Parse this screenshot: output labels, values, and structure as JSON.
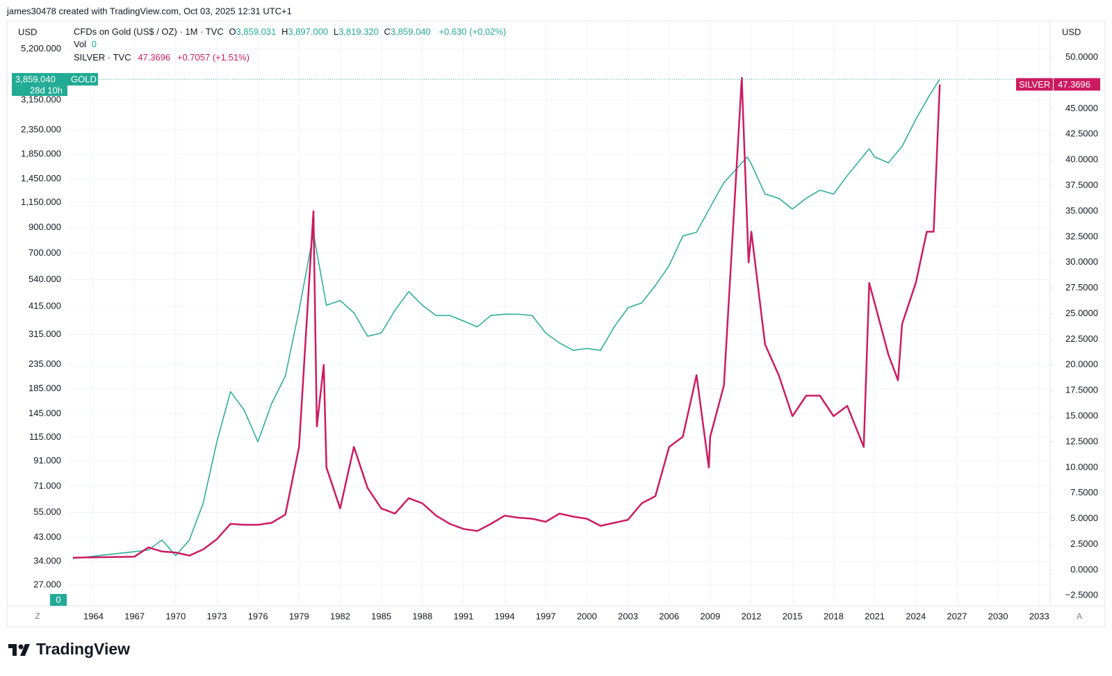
{
  "header": {
    "credit": "james30478 created with TradingView.com, Oct 03, 2025 12:31 UTC+1"
  },
  "legend": {
    "gold_symbol": "CFDs on Gold (US$ / OZ) · 1M · TVC",
    "open_key": "O",
    "open": "3,859.031",
    "high_key": "H",
    "high": "3,897.000",
    "low_key": "L",
    "low": "3,819.320",
    "close_key": "C",
    "close": "3,859.040",
    "change": "+0.630 (+0.02%)",
    "vol_key": "Vol",
    "vol": "0",
    "silver_symbol": "SILVER · TVC",
    "silver_price": "47.3696",
    "silver_change": "+0.7057 (+1.51%)"
  },
  "chart_data": {
    "type": "line",
    "y_unit": "USD",
    "y2_unit": "USD",
    "ylog": true,
    "grid": true,
    "xlim": [
      1962.1,
      2033.8
    ],
    "xticks": [
      1964,
      1967,
      1970,
      1973,
      1976,
      1979,
      1982,
      1985,
      1988,
      1991,
      1994,
      1997,
      2000,
      2003,
      2006,
      2009,
      2012,
      2015,
      2018,
      2021,
      2024,
      2027,
      2030,
      2033
    ],
    "ylim": [
      22,
      6800
    ],
    "yticks": [
      {
        "value": 27,
        "label": "27.000"
      },
      {
        "value": 34,
        "label": "34.000"
      },
      {
        "value": 43,
        "label": "43.000"
      },
      {
        "value": 55,
        "label": "55.000"
      },
      {
        "value": 71,
        "label": "71.000"
      },
      {
        "value": 91,
        "label": "91.000"
      },
      {
        "value": 115,
        "label": "115.000"
      },
      {
        "value": 145,
        "label": "145.000"
      },
      {
        "value": 185,
        "label": "185.000"
      },
      {
        "value": 235,
        "label": "235.000"
      },
      {
        "value": 315,
        "label": "315.000"
      },
      {
        "value": 415,
        "label": "415.000"
      },
      {
        "value": 540,
        "label": "540.000"
      },
      {
        "value": 700,
        "label": "700.000"
      },
      {
        "value": 900,
        "label": "900.000"
      },
      {
        "value": 1150,
        "label": "1,150.000"
      },
      {
        "value": 1450,
        "label": "1,450.000"
      },
      {
        "value": 1850,
        "label": "1,850.000"
      },
      {
        "value": 2350,
        "label": "2,350.000"
      },
      {
        "value": 3150,
        "label": "3,150.000"
      },
      {
        "value": 5200,
        "label": "5,200.000"
      }
    ],
    "y2lim": [
      -3.5,
      53.5
    ],
    "y2ticks": [
      {
        "value": -2.5,
        "label": "−2.5000"
      },
      {
        "value": 0,
        "label": "0.0000"
      },
      {
        "value": 2.5,
        "label": "2.5000"
      },
      {
        "value": 5,
        "label": "5.0000"
      },
      {
        "value": 7.5,
        "label": "7.5000"
      },
      {
        "value": 10,
        "label": "10.0000"
      },
      {
        "value": 12.5,
        "label": "12.5000"
      },
      {
        "value": 15,
        "label": "15.0000"
      },
      {
        "value": 17.5,
        "label": "17.5000"
      },
      {
        "value": 20,
        "label": "20.0000"
      },
      {
        "value": 22.5,
        "label": "22.5000"
      },
      {
        "value": 25,
        "label": "25.0000"
      },
      {
        "value": 27.5,
        "label": "27.5000"
      },
      {
        "value": 30,
        "label": "30.0000"
      },
      {
        "value": 32.5,
        "label": "32.5000"
      },
      {
        "value": 35,
        "label": "35.0000"
      },
      {
        "value": 37.5,
        "label": "37.5000"
      },
      {
        "value": 40,
        "label": "40.0000"
      },
      {
        "value": 42.5,
        "label": "42.5000"
      },
      {
        "value": 45,
        "label": "45.0000"
      },
      {
        "value": 50,
        "label": "50.0000"
      }
    ],
    "series": [
      {
        "name": "GOLD",
        "color": "#22ab94",
        "axis": "y",
        "x": [
          1962.5,
          1968,
          1969,
          1970,
          1971,
          1972,
          1973,
          1974,
          1975,
          1976,
          1977,
          1978,
          1979,
          1980.05,
          1981,
          1982,
          1983,
          1984,
          1985,
          1986,
          1987,
          1988,
          1989,
          1990,
          1991,
          1992,
          1993,
          1994,
          1995,
          1996,
          1997,
          1998,
          1999,
          2000,
          2001,
          2002,
          2003,
          2004,
          2005,
          2006,
          2007,
          2008,
          2009,
          2010,
          2011.7,
          2012,
          2013,
          2014,
          2015,
          2016,
          2017,
          2018,
          2019,
          2020.6,
          2021,
          2022,
          2023,
          2024,
          2025,
          2025.75
        ],
        "values": [
          35,
          38,
          42,
          36,
          42,
          60,
          110,
          180,
          150,
          110,
          160,
          210,
          400,
          850,
          420,
          440,
          390,
          310,
          320,
          400,
          480,
          420,
          380,
          380,
          360,
          340,
          380,
          385,
          385,
          380,
          320,
          290,
          270,
          275,
          270,
          340,
          410,
          430,
          510,
          620,
          830,
          860,
          1100,
          1400,
          1800,
          1680,
          1250,
          1200,
          1080,
          1200,
          1300,
          1250,
          1500,
          1950,
          1800,
          1700,
          2000,
          2600,
          3300,
          3859.04
        ]
      },
      {
        "name": "SILVER",
        "color": "#cc1a60",
        "axis": "y2",
        "x": [
          1962.5,
          1967,
          1968,
          1969,
          1970,
          1971,
          1972,
          1973,
          1974,
          1975,
          1976,
          1977,
          1978,
          1979,
          1980.05,
          1980.3,
          1980.8,
          1981,
          1982,
          1983,
          1984,
          1985,
          1986,
          1987,
          1988,
          1989,
          1990,
          1991,
          1992,
          1993,
          1994,
          1995,
          1996,
          1997,
          1998,
          1999,
          2000,
          2001,
          2002,
          2003,
          2004,
          2005,
          2006,
          2007,
          2008,
          2008.9,
          2009,
          2010,
          2011.3,
          2011.8,
          2012,
          2013,
          2014,
          2015,
          2016,
          2017,
          2018,
          2019,
          2020.2,
          2020.6,
          2021,
          2022,
          2022.7,
          2023,
          2024,
          2024.8,
          2025.3,
          2025.75
        ],
        "values": [
          1.2,
          1.3,
          2.2,
          1.8,
          1.7,
          1.4,
          2.0,
          3.0,
          4.5,
          4.4,
          4.4,
          4.6,
          5.4,
          12,
          35,
          14,
          20,
          10,
          6,
          12,
          8,
          6,
          5.5,
          7,
          6.5,
          5.3,
          4.5,
          4,
          3.8,
          4.5,
          5.3,
          5.1,
          5,
          4.7,
          5.5,
          5.2,
          5,
          4.3,
          4.6,
          4.9,
          6.5,
          7.2,
          12,
          13,
          19,
          10,
          13,
          18,
          48,
          30,
          33,
          22,
          19,
          15,
          17,
          17,
          15,
          16,
          12,
          28,
          26,
          21,
          18.5,
          24,
          28,
          33,
          33,
          47.3696
        ]
      }
    ],
    "gold_tag": {
      "price": "3,859.040",
      "countdown": "28d 10h"
    },
    "silver_tag": {
      "price": "47.3696"
    },
    "volume_label": "0",
    "left_button": "Z",
    "right_button": "A"
  },
  "footer": {
    "brand": "TradingView"
  }
}
